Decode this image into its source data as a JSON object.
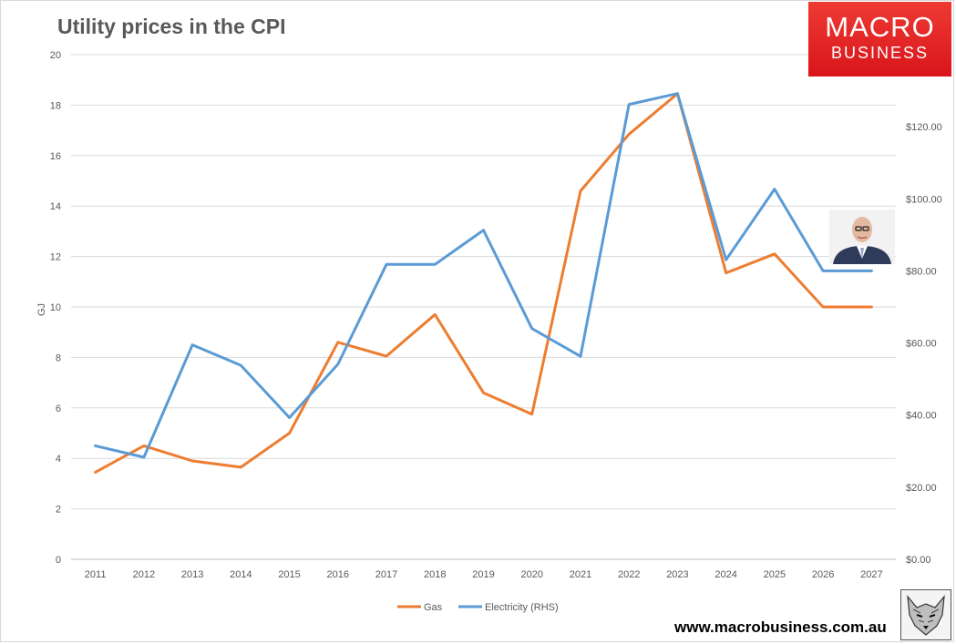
{
  "chart_data": {
    "type": "line",
    "title": "Utility prices in the CPI",
    "categories": [
      "2011",
      "2012",
      "2013",
      "2014",
      "2015",
      "2016",
      "2017",
      "2018",
      "2019",
      "2020",
      "2021",
      "2022",
      "2023",
      "2024",
      "2025",
      "2026",
      "2027"
    ],
    "ylabel": "GJ",
    "ylim": [
      0,
      20
    ],
    "yticks": [
      "0",
      "2",
      "4",
      "6",
      "8",
      "10",
      "12",
      "14",
      "16",
      "18",
      "20"
    ],
    "y2lim": [
      0,
      140
    ],
    "y2ticks": [
      "$0.00",
      "$20.00",
      "$40.00",
      "$60.00",
      "$80.00",
      "$100.00",
      "$120.00"
    ],
    "grid": true,
    "legend_position": "bottom",
    "series": [
      {
        "name": "Gas",
        "axis": "left",
        "color": "#ed7d31",
        "values": [
          3.45,
          4.5,
          3.9,
          3.65,
          5.0,
          8.6,
          8.05,
          9.7,
          6.6,
          5.75,
          14.6,
          16.85,
          18.45,
          11.35,
          12.1,
          10.0,
          10.0
        ]
      },
      {
        "name": "Electricity (RHS)",
        "axis": "right",
        "color": "#5b9bd5",
        "values": [
          31.5,
          28.3,
          59.5,
          53.8,
          39.3,
          54.1,
          81.8,
          81.8,
          91.3,
          64.0,
          56.3,
          126.2,
          129.2,
          83.1,
          102.7,
          80.0,
          80.0
        ]
      }
    ]
  },
  "brand": {
    "line1": "MACRO",
    "line2": "BUSINESS"
  },
  "footer": {
    "url": "www.macrobusiness.com.au"
  },
  "icons": {
    "portrait": "person-portrait-icon",
    "wolf": "wolf-logo-icon"
  }
}
